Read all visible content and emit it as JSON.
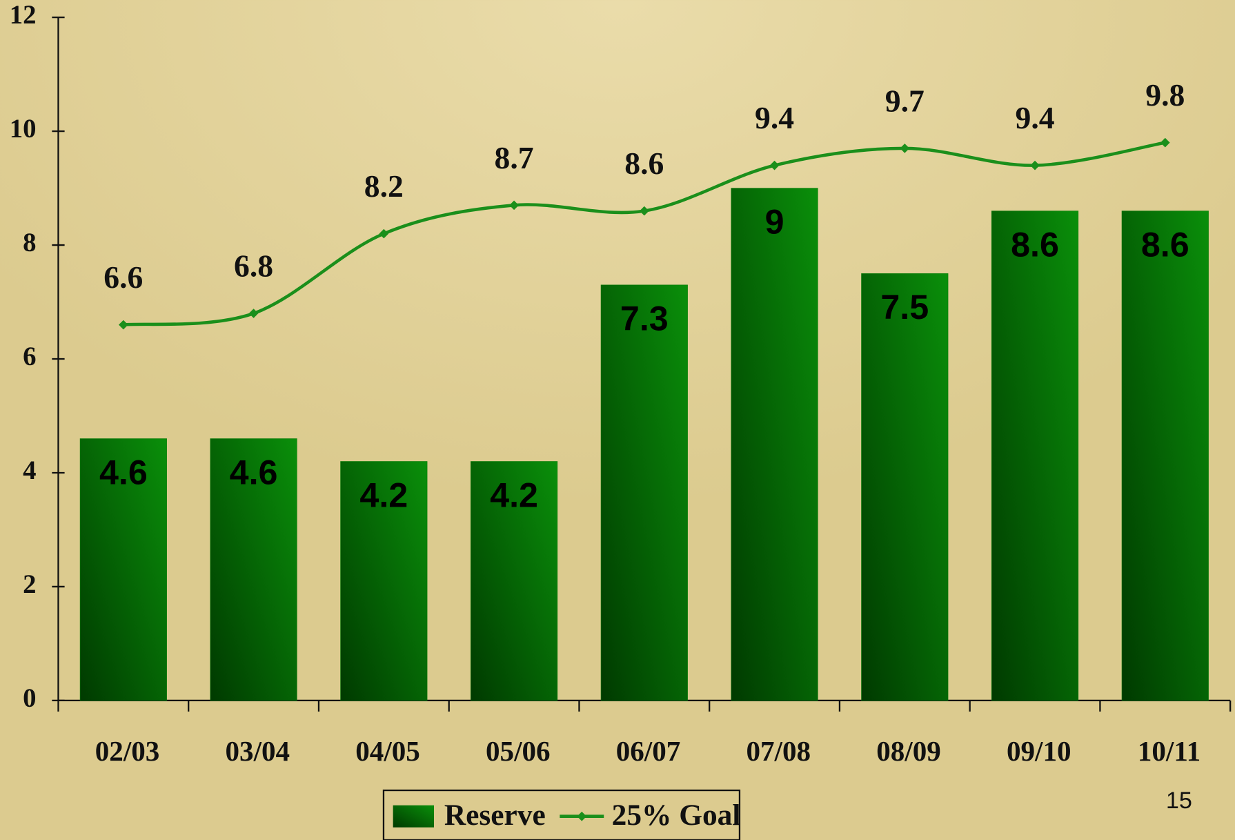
{
  "chart_data": {
    "type": "bar",
    "categories": [
      "02/03",
      "03/04",
      "04/05",
      "05/06",
      "06/07",
      "07/08",
      "08/09",
      "09/10",
      "10/11"
    ],
    "series": [
      {
        "name": "Reserve",
        "type": "bar",
        "color": "#0b7d0b",
        "values": [
          4.6,
          4.6,
          4.2,
          4.2,
          7.3,
          9,
          7.5,
          8.6,
          8.6
        ]
      },
      {
        "name": "25% Goal",
        "type": "line",
        "color": "#1b8f1b",
        "values": [
          6.6,
          6.8,
          8.2,
          8.7,
          8.6,
          9.4,
          9.7,
          9.4,
          9.8
        ]
      }
    ],
    "ylim": [
      0,
      12
    ],
    "yticks": [
      0,
      2,
      4,
      6,
      8,
      10,
      12
    ],
    "legend": "bottom",
    "page_number": "15"
  }
}
